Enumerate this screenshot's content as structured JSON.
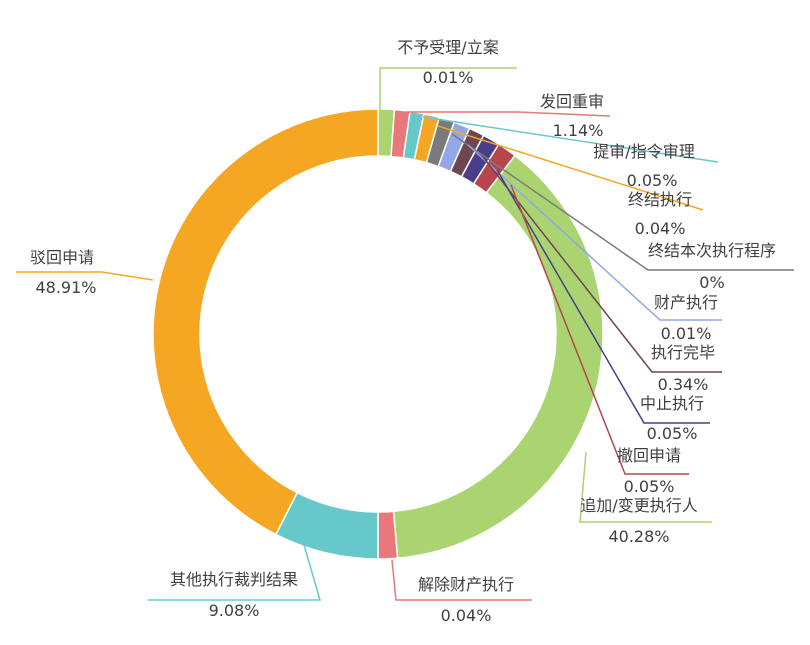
{
  "chart_data": {
    "type": "pie",
    "style": "donut",
    "slices": [
      {
        "name": "不予受理/立案",
        "label": "0.01%",
        "color": "#a9d46f"
      },
      {
        "name": "发回重审",
        "label": "1.14%",
        "color": "#e8787a"
      },
      {
        "name": "提审/指令审理",
        "label": "0.05%",
        "color": "#66c8c8"
      },
      {
        "name": "终结执行",
        "label": "0.04%",
        "color": "#f5a623"
      },
      {
        "name": "终结本次执行程序",
        "label": "0%",
        "color": "#7a7a7a"
      },
      {
        "name": "财产执行",
        "label": "0.01%",
        "color": "#93a6e6"
      },
      {
        "name": "执行完毕",
        "label": "0.34%",
        "color": "#6e4652"
      },
      {
        "name": "中止执行",
        "label": "0.05%",
        "color": "#4a3e8c"
      },
      {
        "name": "撤回申请",
        "label": "0.05%",
        "color": "#b8454b"
      },
      {
        "name": "追加/变更执行人",
        "label": "40.28%",
        "color": "#a9d46f"
      },
      {
        "name": "解除财产执行",
        "label": "0.04%",
        "color": "#e8787a"
      },
      {
        "name": "其他执行裁判结果",
        "label": "9.08%",
        "color": "#66c8c8"
      },
      {
        "name": "驳回申请",
        "label": "48.91%",
        "color": "#f5a623"
      }
    ]
  }
}
